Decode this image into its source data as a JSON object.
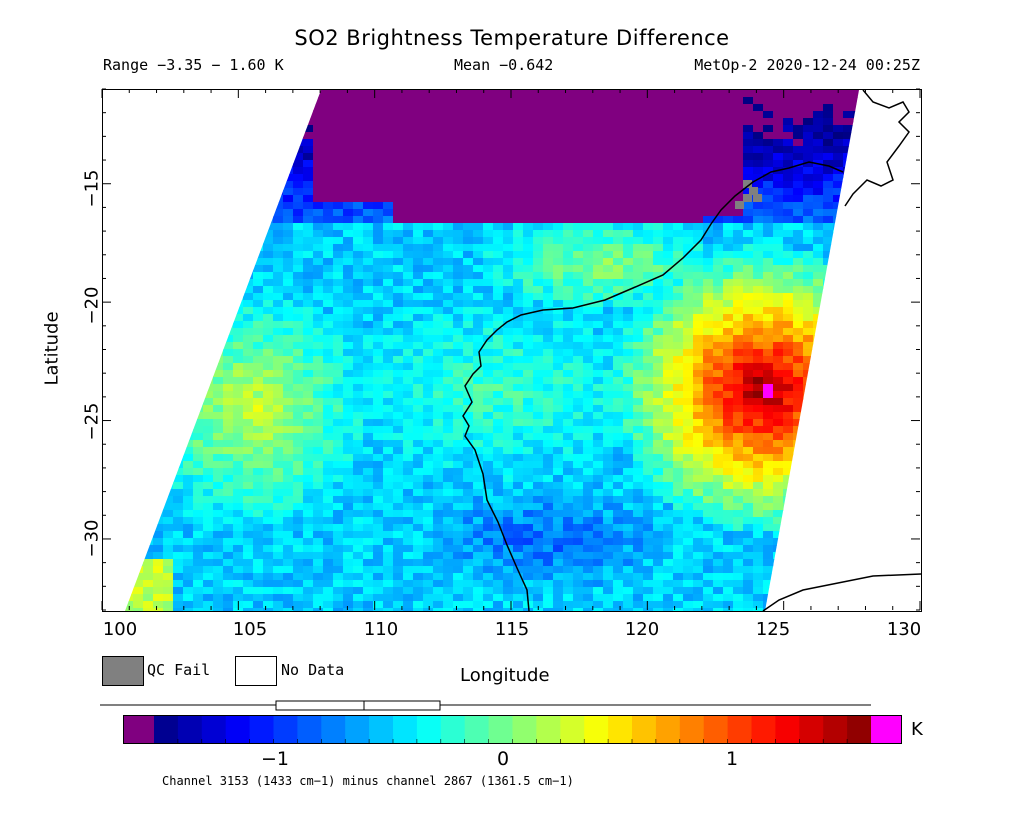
{
  "title": "SO2 Brightness Temperature Difference",
  "range_text": "Range −3.35 − 1.60 K",
  "mean_text": "Mean −0.642",
  "source_text": "MetOp-2 2020-12-24 00:25Z",
  "map": {
    "xlabel": "Longitude",
    "ylabel": "Latitude",
    "x_ticks": [
      "100",
      "105",
      "110",
      "115",
      "120",
      "125",
      "130"
    ],
    "y_ticks": [
      "−15",
      "−20",
      "−25",
      "−30"
    ],
    "lon_range": [
      100,
      130
    ],
    "lat_range": [
      -33,
      -11
    ],
    "colors": {
      "qc_fail": "#808080",
      "no_data": "#ffffff",
      "coastline": "#000000"
    }
  },
  "legend": {
    "qc_fail_label": "QC Fail",
    "no_data_label": "No Data"
  },
  "colorbar": {
    "unit": "K",
    "ticks": [
      "−1",
      "0",
      "1"
    ],
    "tick_values": [
      -1,
      0,
      1
    ],
    "value_range": [
      -1.6,
      1.6
    ],
    "under_color": "#800080",
    "over_color": "#ff00ff"
  },
  "footnote": "Channel 3153 (1433 cm−1) minus channel 2867 (1361.5 cm−1)"
}
